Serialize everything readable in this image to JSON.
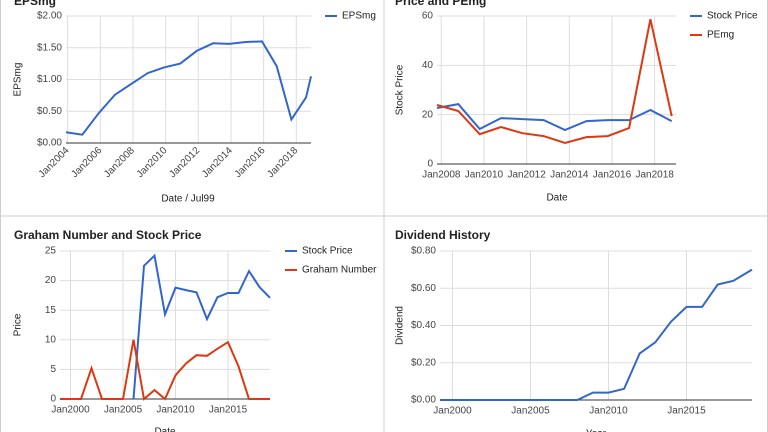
{
  "chart_data": [
    {
      "type": "line",
      "title": "EPSmg",
      "x_label": "Date / Jul99",
      "y_label": "EPSmg",
      "legend": "right",
      "xlim": [
        2003.9,
        2018.9
      ],
      "xticks": [
        {
          "value": 2004,
          "label": "Jan2004"
        },
        {
          "value": 2006,
          "label": "Jan2006"
        },
        {
          "value": 2008,
          "label": "Jan2008"
        },
        {
          "value": 2010,
          "label": "Jan2010"
        },
        {
          "value": 2012,
          "label": "Jan2012"
        },
        {
          "value": 2014,
          "label": "Jan2014"
        },
        {
          "value": 2016,
          "label": "Jan2016"
        },
        {
          "value": 2018,
          "label": "Jan2018"
        }
      ],
      "ylim": [
        0,
        2
      ],
      "yticks": [
        {
          "value": 0,
          "label": "$0.00"
        },
        {
          "value": 0.5,
          "label": "$0.50"
        },
        {
          "value": 1,
          "label": "$1.00"
        },
        {
          "value": 1.5,
          "label": "$1.50"
        },
        {
          "value": 2,
          "label": "$2.00"
        }
      ],
      "series": [
        {
          "name": "EPSmg",
          "color": "#3366cc",
          "x": [
            2003.9,
            2004.9,
            2005.9,
            2006.9,
            2007.9,
            2008.9,
            2009.9,
            2010.9,
            2011.9,
            2012.9,
            2013.9,
            2014.9,
            2015.9,
            2016.8,
            2017.7,
            2018.6,
            2018.9
          ],
          "values": [
            0.17,
            0.13,
            0.47,
            0.76,
            0.93,
            1.1,
            1.19,
            1.25,
            1.45,
            1.57,
            1.56,
            1.59,
            1.6,
            1.21,
            0.37,
            0.72,
            1.05
          ]
        }
      ]
    },
    {
      "type": "line",
      "title": "Price and PEmg",
      "x_label": "Date",
      "y_label": "Stock Price",
      "legend": "right",
      "xlim": [
        2007.8,
        2019.0
      ],
      "xticks": [
        {
          "value": 2008,
          "label": "Jan2008"
        },
        {
          "value": 2010,
          "label": "Jan2010"
        },
        {
          "value": 2012,
          "label": "Jan2012"
        },
        {
          "value": 2014,
          "label": "Jan2014"
        },
        {
          "value": 2016,
          "label": "Jan2016"
        },
        {
          "value": 2018,
          "label": "Jan2018"
        }
      ],
      "ylim": [
        0,
        60
      ],
      "yticks": [
        0,
        20,
        40,
        60
      ],
      "series": [
        {
          "name": "Stock Price",
          "color": "#3366cc",
          "x": [
            2007.8,
            2008.8,
            2009.8,
            2010.8,
            2011.8,
            2012.8,
            2013.8,
            2014.8,
            2015.8,
            2016.8,
            2017.8,
            2018.8
          ],
          "values": [
            22.7,
            24.3,
            14.2,
            18.6,
            18.2,
            17.8,
            13.8,
            17.4,
            17.8,
            17.8,
            21.9,
            17.4
          ]
        },
        {
          "name": "PEmg",
          "color": "#dc3912",
          "x": [
            2007.8,
            2008.8,
            2009.8,
            2010.8,
            2011.8,
            2012.8,
            2013.8,
            2014.8,
            2015.8,
            2016.8,
            2017.8,
            2018.8
          ],
          "values": [
            23.9,
            21.5,
            12.1,
            15,
            12.5,
            11.3,
            8.5,
            10.9,
            11.3,
            14.6,
            58.7,
            19.4
          ]
        }
      ]
    },
    {
      "type": "line",
      "title": "Graham Number and Stock Price",
      "x_label": "Date",
      "y_label": "Price",
      "legend": "right",
      "xlim": [
        1999,
        2019
      ],
      "xticks": [
        {
          "value": 2000,
          "label": "Jan2000"
        },
        {
          "value": 2005,
          "label": "Jan2005"
        },
        {
          "value": 2010,
          "label": "Jan2010"
        },
        {
          "value": 2015,
          "label": "Jan2015"
        }
      ],
      "ylim": [
        0,
        25
      ],
      "yticks": [
        0,
        5,
        10,
        15,
        20,
        25
      ],
      "series": [
        {
          "name": "Stock Price",
          "color": "#3366cc",
          "x": [
            2006,
            2007,
            2008,
            2009,
            2010,
            2011,
            2012,
            2013,
            2014,
            2015,
            2016,
            2017,
            2018,
            2019
          ],
          "values": [
            0,
            22.5,
            24.2,
            14.3,
            18.8,
            18.4,
            18,
            13.5,
            17.2,
            17.9,
            17.9,
            21.6,
            18.9,
            17.1
          ]
        },
        {
          "name": "Graham Number",
          "color": "#dc3912",
          "x": [
            1999,
            2000,
            2001,
            2002,
            2003,
            2004,
            2005,
            2006,
            2007,
            2008,
            2009,
            2010,
            2011,
            2012,
            2013,
            2014,
            2015,
            2016,
            2017,
            2018,
            2019
          ],
          "values": [
            0,
            0,
            0,
            5.2,
            0,
            0,
            0,
            10,
            0,
            1.5,
            0,
            4,
            6,
            7.4,
            7.3,
            8.5,
            9.6,
            5.5,
            0,
            0,
            0
          ]
        }
      ]
    },
    {
      "type": "line",
      "title": "Dividend History",
      "x_label": "Year",
      "y_label": "Dividend",
      "xlim": [
        1999.2,
        2019.2
      ],
      "xticks": [
        {
          "value": 2000,
          "label": "Jan2000"
        },
        {
          "value": 2005,
          "label": "Jan2005"
        },
        {
          "value": 2010,
          "label": "Jan2010"
        },
        {
          "value": 2015,
          "label": "Jan2015"
        }
      ],
      "ylim": [
        0,
        0.8
      ],
      "yticks": [
        {
          "value": 0,
          "label": "$0.00"
        },
        {
          "value": 0.2,
          "label": "$0.20"
        },
        {
          "value": 0.4,
          "label": "$0.40"
        },
        {
          "value": 0.6,
          "label": "$0.60"
        },
        {
          "value": 0.8,
          "label": "$0.80"
        }
      ],
      "series": [
        {
          "color": "#3366cc",
          "x": [
            1999.2,
            2008,
            2009,
            2010,
            2011,
            2012,
            2013,
            2014,
            2015,
            2016,
            2017,
            2018,
            2019.2
          ],
          "values": [
            0,
            0,
            0.04,
            0.04,
            0.06,
            0.25,
            0.31,
            0.42,
            0.5,
            0.5,
            0.62,
            0.64,
            0.7
          ]
        }
      ]
    }
  ]
}
